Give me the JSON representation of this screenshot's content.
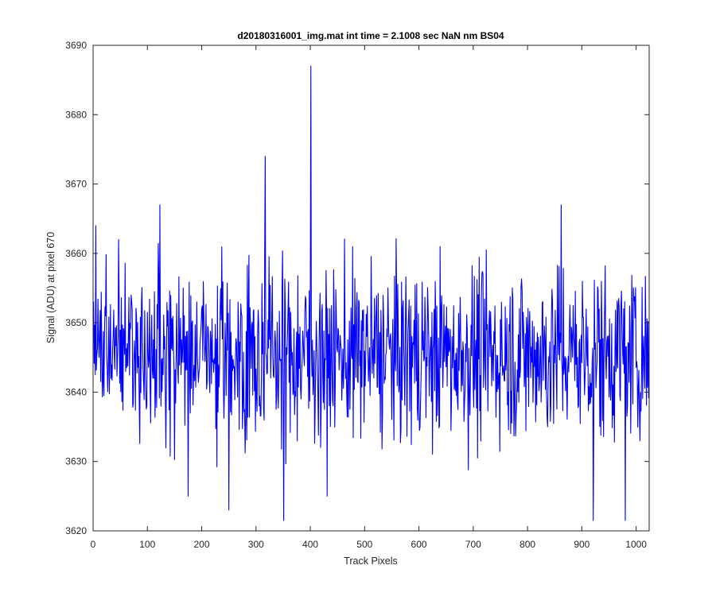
{
  "chart_data": {
    "type": "line",
    "title": "d20180316001_img.mat int time = 2.1008 sec  NaN nm BS04",
    "xlabel": "Track Pixels",
    "ylabel": "Signal (ADU) at pixel 670",
    "xlim": [
      0,
      1024
    ],
    "ylim": [
      3620,
      3690
    ],
    "xticks": [
      0,
      100,
      200,
      300,
      400,
      500,
      600,
      700,
      800,
      900,
      1000
    ],
    "yticks": [
      3620,
      3630,
      3640,
      3650,
      3660,
      3670,
      3680,
      3690
    ],
    "grid": false,
    "legend": "none",
    "series": [
      {
        "color": "#0000ff",
        "x_start": 1,
        "x_step": 1,
        "baseline": 3645.5,
        "spikes": [
          {
            "x": 5,
            "y": 3664
          },
          {
            "x": 47,
            "y": 3662
          },
          {
            "x": 123,
            "y": 3667
          },
          {
            "x": 175,
            "y": 3625
          },
          {
            "x": 250,
            "y": 3623
          },
          {
            "x": 317,
            "y": 3674
          },
          {
            "x": 351,
            "y": 3621
          },
          {
            "x": 401,
            "y": 3687
          },
          {
            "x": 431,
            "y": 3625
          },
          {
            "x": 862,
            "y": 3667
          },
          {
            "x": 921,
            "y": 3621
          },
          {
            "x": 980,
            "y": 3621
          }
        ]
      }
    ]
  }
}
